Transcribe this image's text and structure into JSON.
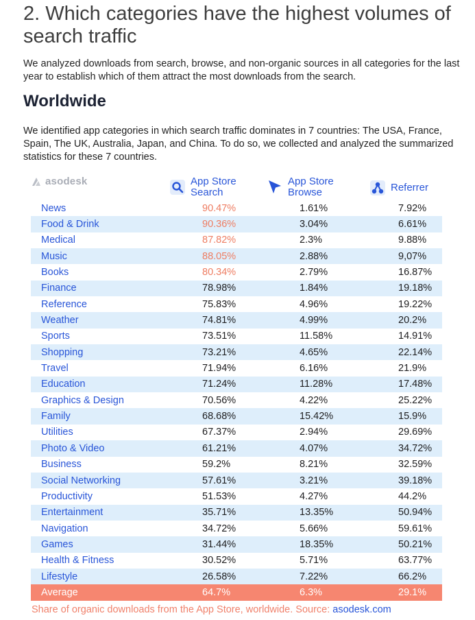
{
  "heading": "2. Which categories have the highest volumes of search traffic",
  "intro": "We analyzed downloads from search, browse, and non-organic sources in all categories for the last year to establish which of them attract the most downloads from the search.",
  "subheading": "Worldwide",
  "description": "We identified app categories in which search traffic dominates in 7 countries: The USA, France, Spain, The UK, Australia, Japan, and China. To do so, we collected and analyzed the summarized statistics for these 7 countries.",
  "logo_text": "asodesk",
  "columns": {
    "search": {
      "line1": "App Store",
      "line2": "Search",
      "icon": "magnifier-icon"
    },
    "browse": {
      "line1": "App Store",
      "line2": "Browse",
      "icon": "cursor-icon"
    },
    "referrer": {
      "label": "Referrer",
      "icon": "network-icon"
    }
  },
  "colors": {
    "accent": "#2855d8",
    "highlight": "#ee7d62",
    "average_bg": "#f68670",
    "row_alt": "#deeefb"
  },
  "rows": [
    {
      "category": "News",
      "search": "90.47%",
      "browse": "1.61%",
      "referrer": "7.92%",
      "highlight": true
    },
    {
      "category": "Food & Drink",
      "search": "90.36%",
      "browse": "3.04%",
      "referrer": "6.61%",
      "highlight": true
    },
    {
      "category": "Medical",
      "search": "87.82%",
      "browse": "2.3%",
      "referrer": "9.88%",
      "highlight": true
    },
    {
      "category": "Music",
      "search": "88.05%",
      "browse": "2.88%",
      "referrer": "9,07%",
      "highlight": true
    },
    {
      "category": "Books",
      "search": "80.34%",
      "browse": "2.79%",
      "referrer": "16.87%",
      "highlight": true
    },
    {
      "category": "Finance",
      "search": "78.98%",
      "browse": "1.84%",
      "referrer": "19.18%"
    },
    {
      "category": "Reference",
      "search": "75.83%",
      "browse": "4.96%",
      "referrer": "19.22%"
    },
    {
      "category": "Weather",
      "search": "74.81%",
      "browse": "4.99%",
      "referrer": "20.2%"
    },
    {
      "category": "Sports",
      "search": "73.51%",
      "browse": "11.58%",
      "referrer": "14.91%"
    },
    {
      "category": "Shopping",
      "search": "73.21%",
      "browse": "4.65%",
      "referrer": "22.14%"
    },
    {
      "category": "Travel",
      "search": "71.94%",
      "browse": "6.16%",
      "referrer": "21.9%"
    },
    {
      "category": "Education",
      "search": "71.24%",
      "browse": "11.28%",
      "referrer": "17.48%"
    },
    {
      "category": "Graphics & Design",
      "search": "70.56%",
      "browse": "4.22%",
      "referrer": "25.22%"
    },
    {
      "category": "Family",
      "search": "68.68%",
      "browse": "15.42%",
      "referrer": "15.9%"
    },
    {
      "category": "Utilities",
      "search": "67.37%",
      "browse": "2.94%",
      "referrer": "29.69%"
    },
    {
      "category": "Photo & Video",
      "search": "61.21%",
      "browse": "4.07%",
      "referrer": "34.72%"
    },
    {
      "category": "Business",
      "search": "59.2%",
      "browse": "8.21%",
      "referrer": "32.59%"
    },
    {
      "category": "Social Networking",
      "search": "57.61%",
      "browse": "3.21%",
      "referrer": "39.18%"
    },
    {
      "category": "Productivity",
      "search": "51.53%",
      "browse": "4.27%",
      "referrer": "44.2%"
    },
    {
      "category": "Entertainment",
      "search": "35.71%",
      "browse": "13.35%",
      "referrer": "50.94%"
    },
    {
      "category": "Navigation",
      "search": "34.72%",
      "browse": "5.66%",
      "referrer": "59.61%"
    },
    {
      "category": "Games",
      "search": "31.44%",
      "browse": "18.35%",
      "referrer": "50.21%"
    },
    {
      "category": "Health & Fitness",
      "search": "30.52%",
      "browse": "5.71%",
      "referrer": "63.77%"
    },
    {
      "category": "Lifestyle",
      "search": "26.58%",
      "browse": "7.22%",
      "referrer": "66.2%"
    }
  ],
  "average": {
    "category": "Average",
    "search": "64.7%",
    "browse": "6.3%",
    "referrer": "29.1%"
  },
  "caption": {
    "text": "Share of organic downloads from the App Store, worldwide. Source: ",
    "source": "asodesk.com"
  }
}
